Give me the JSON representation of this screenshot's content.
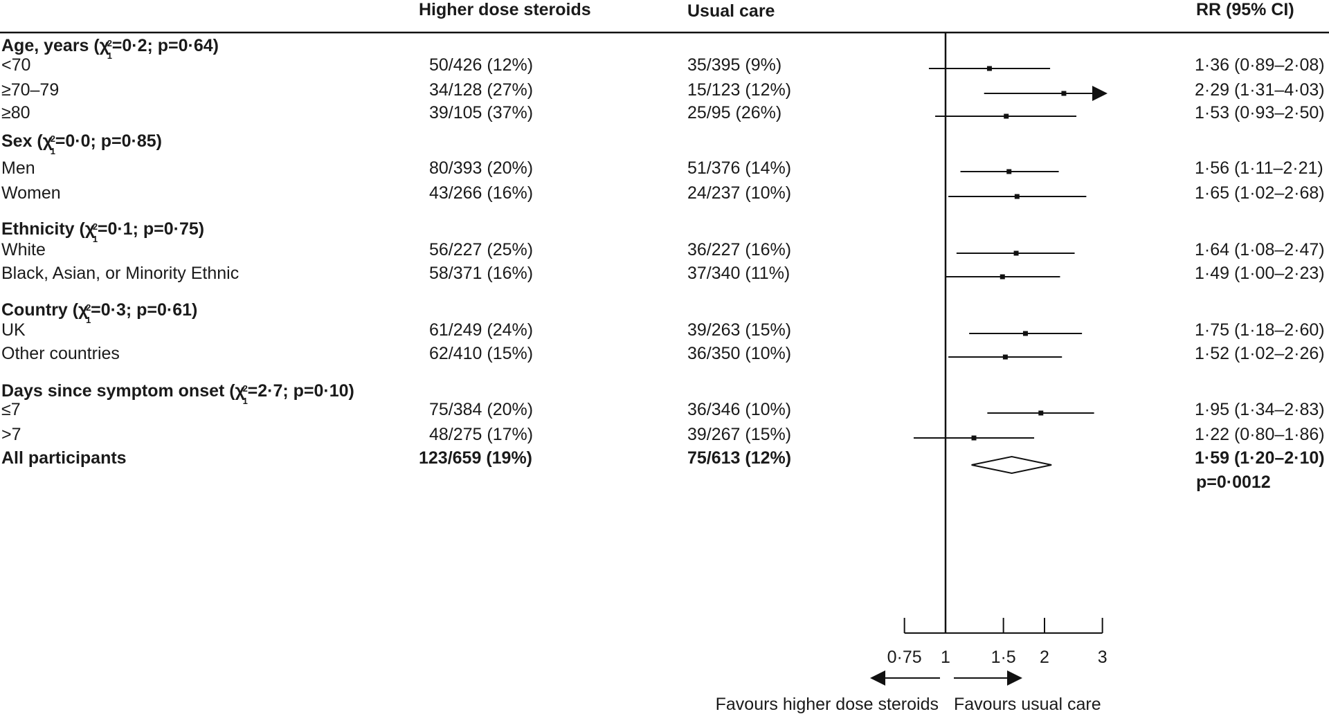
{
  "headers": {
    "treatment": "Higher dose steroids",
    "control": "Usual care",
    "effect": "RR (95% CI)"
  },
  "chart_data": {
    "type": "forest",
    "groups": [
      {
        "label": "Age, years (χ²₁=0·2; p=0·64)",
        "label_pre": "Age, years (",
        "label_stat": "=0·2; p=0·64)",
        "rows": [
          {
            "label": "<70",
            "treatment": "50/426 (12%)",
            "control": "35/395 (9%)",
            "rr": 1.36,
            "lo": 0.89,
            "hi": 2.08,
            "rr_text": "1·36 (0·89–2·08)"
          },
          {
            "label": "≥70–79",
            "treatment": "34/128 (27%)",
            "control": "15/123 (12%)",
            "rr": 2.29,
            "lo": 1.31,
            "hi": 4.03,
            "rr_text": "2·29 (1·31–4·03)",
            "arrow": true
          },
          {
            "label": "≥80",
            "treatment": "39/105 (37%)",
            "control": "25/95 (26%)",
            "rr": 1.53,
            "lo": 0.93,
            "hi": 2.5,
            "rr_text": "1·53 (0·93–2·50)"
          }
        ]
      },
      {
        "label": "Sex (χ²₁=0·0; p=0·85)",
        "label_pre": "Sex (",
        "label_stat": "=0·0; p=0·85)",
        "rows": [
          {
            "label": "Men",
            "treatment": "80/393 (20%)",
            "control": "51/376 (14%)",
            "rr": 1.56,
            "lo": 1.11,
            "hi": 2.21,
            "rr_text": "1·56 (1·11–2·21)"
          },
          {
            "label": "Women",
            "treatment": "43/266 (16%)",
            "control": "24/237 (10%)",
            "rr": 1.65,
            "lo": 1.02,
            "hi": 2.68,
            "rr_text": "1·65 (1·02–2·68)"
          }
        ]
      },
      {
        "label": "Ethnicity (χ²₁=0·1; p=0·75)",
        "label_pre": "Ethnicity (",
        "label_stat": "=0·1; p=0·75)",
        "rows": [
          {
            "label": "White",
            "treatment": "56/227 (25%)",
            "control": "36/227 (16%)",
            "rr": 1.64,
            "lo": 1.08,
            "hi": 2.47,
            "rr_text": "1·64 (1·08–2·47)"
          },
          {
            "label": "Black, Asian, or Minority Ethnic",
            "treatment": "58/371 (16%)",
            "control": "37/340 (11%)",
            "rr": 1.49,
            "lo": 1.0,
            "hi": 2.23,
            "rr_text": "1·49 (1·00–2·23)"
          }
        ]
      },
      {
        "label": "Country (χ²₁=0·3; p=0·61)",
        "label_pre": "Country (",
        "label_stat": "=0·3; p=0·61)",
        "rows": [
          {
            "label": "UK",
            "treatment": "61/249 (24%)",
            "control": "39/263 (15%)",
            "rr": 1.75,
            "lo": 1.18,
            "hi": 2.6,
            "rr_text": "1·75 (1·18–2·60)"
          },
          {
            "label": "Other countries",
            "treatment": "62/410 (15%)",
            "control": "36/350 (10%)",
            "rr": 1.52,
            "lo": 1.02,
            "hi": 2.26,
            "rr_text": "1·52 (1·02–2·26)"
          }
        ]
      },
      {
        "label": "Days since symptom onset (χ²₁=2·7; p=0·10)",
        "label_pre": "Days since symptom onset (",
        "label_stat": "=2·7; p=0·10)",
        "rows": [
          {
            "label": "≤7",
            "treatment": "75/384 (20%)",
            "control": "36/346 (10%)",
            "rr": 1.95,
            "lo": 1.34,
            "hi": 2.83,
            "rr_text": "1·95 (1·34–2·83)"
          },
          {
            "label": ">7",
            "treatment": "48/275 (17%)",
            "control": "39/267 (15%)",
            "rr": 1.22,
            "lo": 0.8,
            "hi": 1.86,
            "rr_text": "1·22 (0·80–1·86)"
          }
        ]
      }
    ],
    "overall": {
      "label": "All participants",
      "treatment": "123/659 (19%)",
      "control": "75/613 (12%)",
      "rr": 1.59,
      "lo": 1.2,
      "hi": 2.1,
      "rr_text": "1·59 (1·20–2·10)",
      "p_text": "p=0·0012"
    },
    "x_axis": {
      "scale": "log",
      "ticks": [
        0.75,
        1,
        1.5,
        2,
        3
      ],
      "tick_labels": [
        "0·75",
        "1",
        "1·5",
        "2",
        "3"
      ],
      "reference": 1
    },
    "favours_left": "Favours higher dose steroids",
    "favours_right": "Favours usual care"
  }
}
